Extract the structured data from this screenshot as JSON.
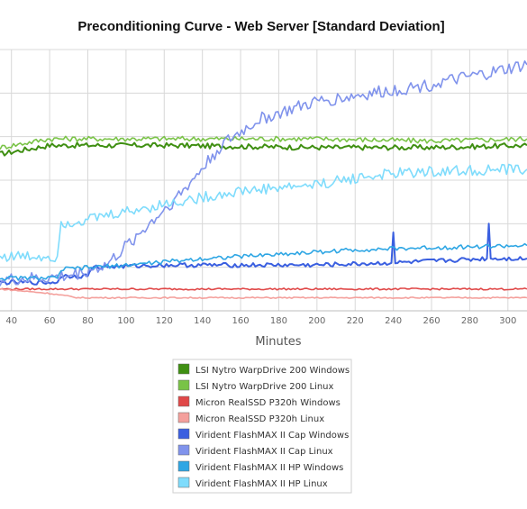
{
  "chart_data": {
    "type": "line",
    "title": "Preconditioning Curve - Web Server [Standard Deviation]",
    "xlabel": "Minutes",
    "ylabel": "",
    "xlim": [
      34,
      310
    ],
    "ylim": [
      0,
      12
    ],
    "grid": true,
    "legend_placement": "bottom-center",
    "x_ticks": [
      40,
      60,
      80,
      100,
      120,
      140,
      160,
      180,
      200,
      220,
      240,
      260,
      280,
      300
    ],
    "series": [
      {
        "name": "LSI Nytro WarpDrive 200 Windows",
        "color": "#3f8f12",
        "points": [
          [
            34,
            7.2
          ],
          [
            60,
            7.6
          ],
          [
            120,
            7.6
          ],
          [
            200,
            7.5
          ],
          [
            260,
            7.5
          ],
          [
            310,
            7.6
          ]
        ]
      },
      {
        "name": "LSI Nytro WarpDrive 200 Linux",
        "color": "#79c346",
        "points": [
          [
            34,
            7.5
          ],
          [
            60,
            7.9
          ],
          [
            120,
            7.9
          ],
          [
            200,
            7.9
          ],
          [
            260,
            7.8
          ],
          [
            310,
            7.9
          ]
        ]
      },
      {
        "name": "Micron RealSSD P320h Windows",
        "color": "#e04848",
        "points": [
          [
            34,
            1.0
          ],
          [
            80,
            1.0
          ],
          [
            160,
            1.0
          ],
          [
            240,
            1.0
          ],
          [
            310,
            1.0
          ]
        ]
      },
      {
        "name": "Micron RealSSD P320h Linux",
        "color": "#f4a09c",
        "points": [
          [
            34,
            1.0
          ],
          [
            60,
            0.8
          ],
          [
            75,
            0.6
          ],
          [
            100,
            0.6
          ],
          [
            200,
            0.6
          ],
          [
            310,
            0.6
          ]
        ]
      },
      {
        "name": "Virident FlashMAX II Cap Windows",
        "color": "#3a5fe0",
        "points": [
          [
            34,
            1.3
          ],
          [
            64,
            1.3
          ],
          [
            66,
            1.6
          ],
          [
            80,
            1.6
          ],
          [
            82,
            2.0
          ],
          [
            120,
            2.1
          ],
          [
            200,
            2.1
          ],
          [
            239,
            2.2
          ],
          [
            240,
            3.6
          ],
          [
            241,
            2.2
          ],
          [
            289,
            2.4
          ],
          [
            290,
            4.0
          ],
          [
            291,
            2.4
          ],
          [
            310,
            2.4
          ]
        ]
      },
      {
        "name": "Virident FlashMAX II Cap Linux",
        "color": "#8093ec",
        "points": [
          [
            34,
            1.4
          ],
          [
            60,
            1.5
          ],
          [
            70,
            1.6
          ],
          [
            90,
            2.1
          ],
          [
            110,
            3.8
          ],
          [
            130,
            5.5
          ],
          [
            150,
            7.6
          ],
          [
            170,
            8.8
          ],
          [
            200,
            9.6
          ],
          [
            230,
            10.0
          ],
          [
            260,
            10.4
          ],
          [
            290,
            10.9
          ],
          [
            310,
            11.3
          ]
        ]
      },
      {
        "name": "Virident FlashMAX II HP Windows",
        "color": "#2ea6e4",
        "points": [
          [
            34,
            1.5
          ],
          [
            64,
            1.5
          ],
          [
            66,
            1.9
          ],
          [
            100,
            2.1
          ],
          [
            140,
            2.4
          ],
          [
            180,
            2.6
          ],
          [
            220,
            2.8
          ],
          [
            260,
            2.9
          ],
          [
            310,
            3.0
          ]
        ]
      },
      {
        "name": "Virident FlashMAX II HP Linux",
        "color": "#7fdcfc",
        "points": [
          [
            34,
            2.5
          ],
          [
            64,
            2.5
          ],
          [
            66,
            4.0
          ],
          [
            80,
            4.2
          ],
          [
            120,
            4.9
          ],
          [
            160,
            5.5
          ],
          [
            200,
            5.8
          ],
          [
            220,
            6.1
          ],
          [
            240,
            6.3
          ],
          [
            260,
            6.4
          ],
          [
            310,
            6.5
          ]
        ]
      }
    ]
  }
}
